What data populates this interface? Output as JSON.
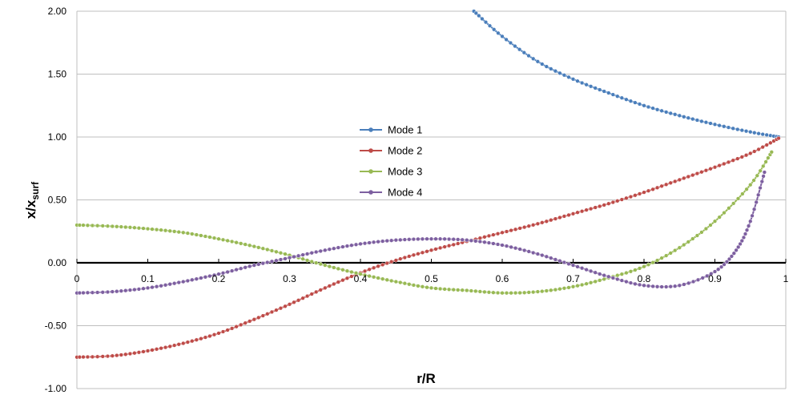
{
  "chart_data": {
    "type": "line",
    "xlabel": "r/R",
    "ylabel_main": "x/x",
    "ylabel_sub": "surf",
    "xlim": [
      0,
      1
    ],
    "ylim": [
      -1.0,
      2.0
    ],
    "x_ticks": [
      "0",
      "0.1",
      "0.2",
      "0.3",
      "0.4",
      "0.5",
      "0.6",
      "0.7",
      "0.8",
      "0.9",
      "1"
    ],
    "y_ticks": [
      "2.00",
      "1.50",
      "1.00",
      "0.50",
      "0.00",
      "-0.50",
      "-1.00"
    ],
    "grid": "horizontal",
    "legend": "center",
    "series": [
      {
        "name": "Mode 1",
        "color": "#4a7ebb",
        "x": [
          0.56,
          0.6,
          0.65,
          0.7,
          0.75,
          0.8,
          0.85,
          0.9,
          0.95,
          0.99
        ],
        "y": [
          2.0,
          1.8,
          1.6,
          1.46,
          1.35,
          1.25,
          1.17,
          1.1,
          1.04,
          1.0
        ]
      },
      {
        "name": "Mode 2",
        "color": "#be4b48",
        "x": [
          0,
          0.05,
          0.1,
          0.15,
          0.2,
          0.25,
          0.3,
          0.35,
          0.4,
          0.45,
          0.5,
          0.55,
          0.6,
          0.65,
          0.7,
          0.75,
          0.8,
          0.85,
          0.9,
          0.95,
          0.99
        ],
        "y": [
          -0.75,
          -0.74,
          -0.7,
          -0.64,
          -0.56,
          -0.45,
          -0.33,
          -0.2,
          -0.08,
          0.02,
          0.1,
          0.17,
          0.24,
          0.31,
          0.39,
          0.47,
          0.56,
          0.66,
          0.76,
          0.87,
          0.99
        ]
      },
      {
        "name": "Mode 3",
        "color": "#98b954",
        "x": [
          0,
          0.05,
          0.1,
          0.15,
          0.2,
          0.25,
          0.3,
          0.35,
          0.4,
          0.45,
          0.5,
          0.55,
          0.6,
          0.65,
          0.7,
          0.75,
          0.8,
          0.85,
          0.9,
          0.95,
          0.98
        ],
        "y": [
          0.3,
          0.29,
          0.27,
          0.24,
          0.19,
          0.13,
          0.06,
          -0.02,
          -0.09,
          -0.15,
          -0.2,
          -0.22,
          -0.24,
          -0.23,
          -0.19,
          -0.12,
          -0.03,
          0.12,
          0.33,
          0.62,
          0.88
        ]
      },
      {
        "name": "Mode 4",
        "color": "#7d5fa0",
        "x": [
          0,
          0.05,
          0.1,
          0.15,
          0.2,
          0.25,
          0.3,
          0.35,
          0.4,
          0.45,
          0.5,
          0.55,
          0.6,
          0.65,
          0.7,
          0.75,
          0.8,
          0.85,
          0.9,
          0.93,
          0.95,
          0.97
        ],
        "y": [
          -0.24,
          -0.23,
          -0.2,
          -0.15,
          -0.09,
          -0.02,
          0.04,
          0.1,
          0.15,
          0.18,
          0.19,
          0.18,
          0.14,
          0.07,
          -0.02,
          -0.11,
          -0.18,
          -0.18,
          -0.07,
          0.1,
          0.33,
          0.72
        ]
      }
    ]
  }
}
